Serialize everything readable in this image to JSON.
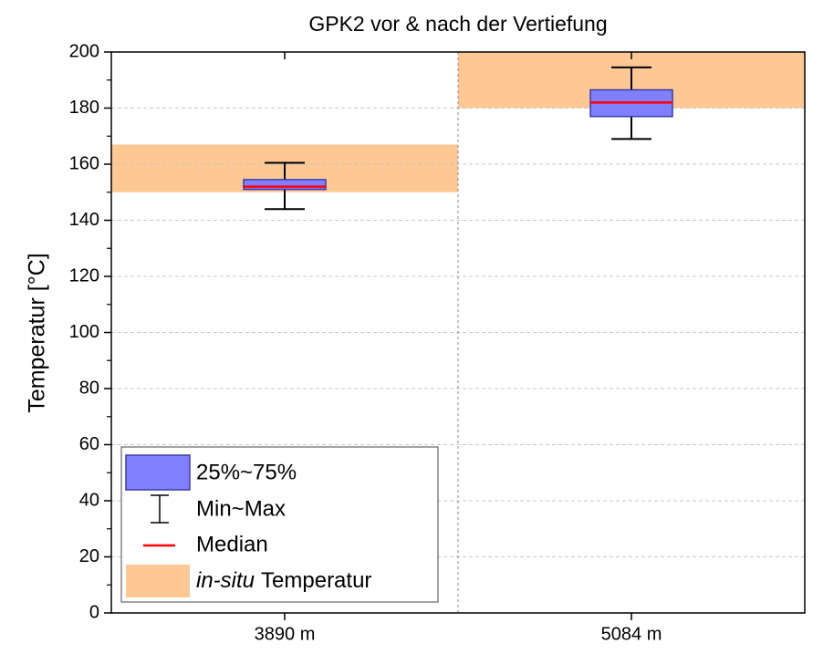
{
  "chart_data": {
    "type": "box",
    "title": "GPK2 vor & nach der Vertiefung",
    "ylabel": "Temperatur [°C]",
    "categories": [
      "3890 m",
      "5084 m"
    ],
    "boxes": [
      {
        "min": 144,
        "q1": 151,
        "median": 152,
        "q3": 154.5,
        "max": 160.5
      },
      {
        "min": 169,
        "q1": 177,
        "median": 182,
        "q3": 186.5,
        "max": 194.5
      }
    ],
    "bands": [
      {
        "low": 150,
        "high": 167
      },
      {
        "low": 180,
        "high": 200
      }
    ],
    "box_color": "#8080ff",
    "box_edge_color": "#3a3aa8",
    "median_color": "#ff0000",
    "band_color": "#fdc893",
    "legend": {
      "box_label": "25%~75%",
      "whisker_label": "Min~Max",
      "median_label": "Median",
      "band_label": {
        "italic": "in-situ",
        "rest": "Temperatur"
      }
    },
    "ylim": [
      0,
      200
    ],
    "yticks": [
      0,
      20,
      40,
      60,
      80,
      100,
      120,
      140,
      160,
      180,
      200
    ],
    "minor_yticks": [
      10,
      30,
      50,
      70,
      90,
      110,
      130,
      150,
      170,
      190
    ],
    "grid": true
  }
}
